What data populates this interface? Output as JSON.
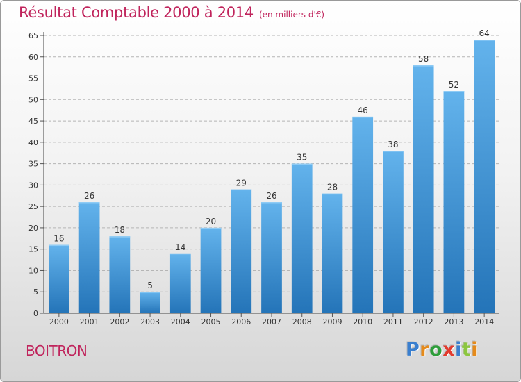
{
  "title": "Résultat Comptable 2000 à 2014",
  "unit_note": "(en milliers d'€)",
  "commune": "BOITRON",
  "logo": {
    "letters": [
      "P",
      "r",
      "o",
      "x",
      "i",
      "t",
      "i"
    ],
    "colors": [
      "#3a7fcf",
      "#e58a1a",
      "#2f9e3b",
      "#e23b2e",
      "#3a7fcf",
      "#8cc63f",
      "#e58a1a"
    ]
  },
  "colors": {
    "bar_light": "#63b3ec",
    "bar_dark": "#2474b8",
    "title": "#c0245c",
    "grid": "#b5b5b5"
  },
  "chart_data": {
    "type": "bar",
    "categories": [
      "2000",
      "2001",
      "2002",
      "2003",
      "2004",
      "2005",
      "2006",
      "2007",
      "2008",
      "2009",
      "2010",
      "2011",
      "2012",
      "2013",
      "2014"
    ],
    "values": [
      16,
      26,
      18,
      5,
      14,
      20,
      29,
      26,
      35,
      28,
      46,
      38,
      58,
      52,
      64
    ],
    "ylim": [
      0,
      65
    ],
    "yticks": [
      0,
      5,
      10,
      15,
      20,
      25,
      30,
      35,
      40,
      45,
      50,
      55,
      60,
      65
    ],
    "grid": true,
    "title": "Résultat Comptable 2000 à 2014",
    "xlabel": "",
    "ylabel": ""
  }
}
